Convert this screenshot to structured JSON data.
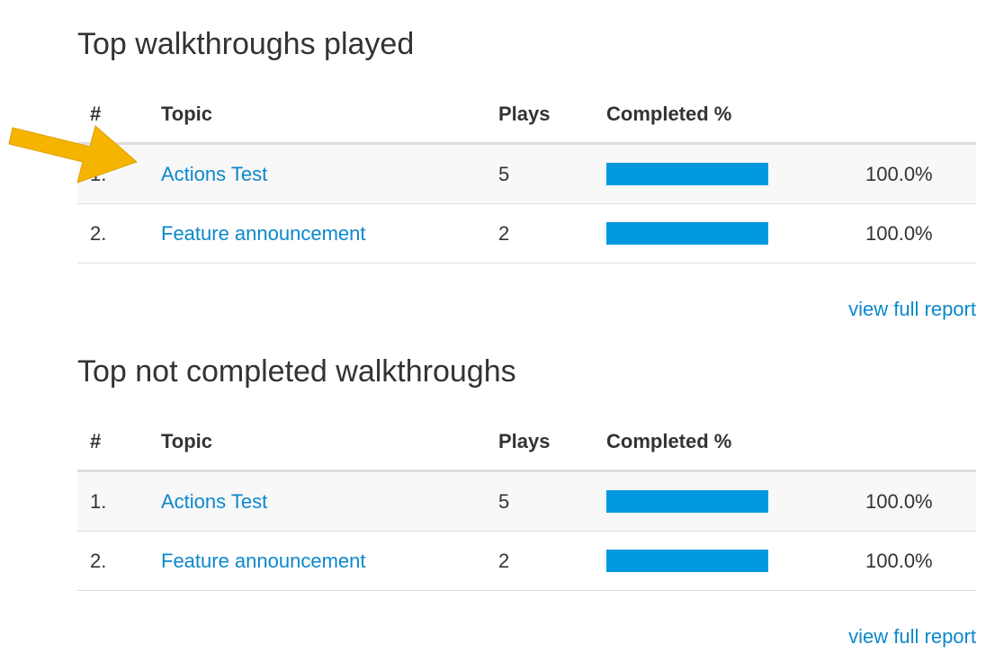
{
  "sections": [
    {
      "title": "Top walkthroughs played",
      "headers": [
        "#",
        "Topic",
        "Plays",
        "Completed %"
      ],
      "rows": [
        {
          "num": "1.",
          "topic": "Actions Test",
          "plays": "5",
          "completed": 100,
          "pct": "100.0%"
        },
        {
          "num": "2.",
          "topic": "Feature announcement",
          "plays": "2",
          "completed": 100,
          "pct": "100.0%"
        }
      ],
      "link": "view full report"
    },
    {
      "title": "Top not completed walkthroughs",
      "headers": [
        "#",
        "Topic",
        "Plays",
        "Completed %"
      ],
      "rows": [
        {
          "num": "1.",
          "topic": "Actions Test",
          "plays": "5",
          "completed": 100,
          "pct": "100.0%"
        },
        {
          "num": "2.",
          "topic": "Feature announcement",
          "plays": "2",
          "completed": 100,
          "pct": "100.0%"
        }
      ],
      "link": "view full report"
    }
  ],
  "colors": {
    "link": "#0b88cc",
    "bar": "#0099e0",
    "arrow": "#f5b400"
  }
}
